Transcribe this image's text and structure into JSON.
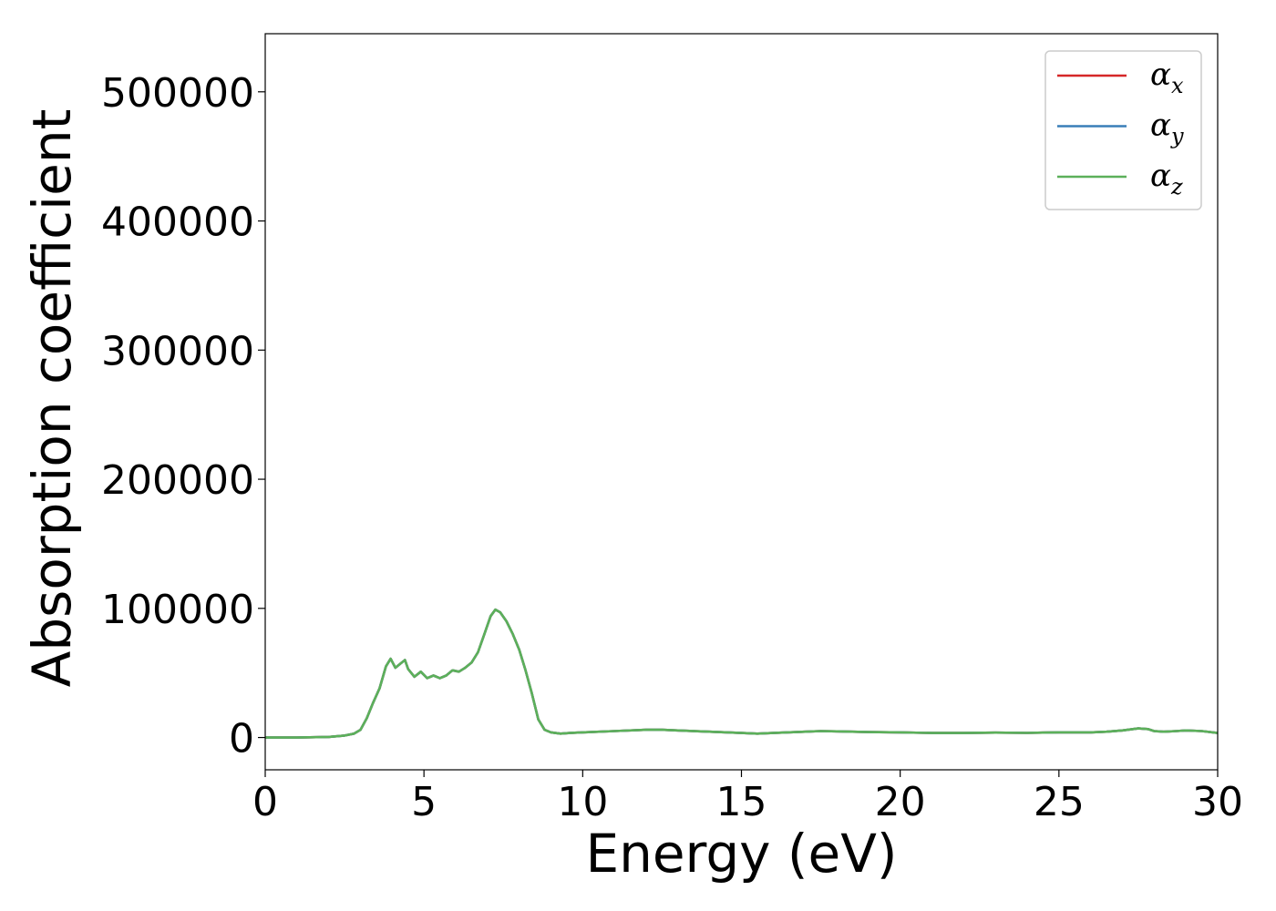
{
  "chart_data": {
    "type": "line",
    "xlabel": "Energy (eV)",
    "ylabel": "Absorption coefficient",
    "xlim": [
      0,
      30
    ],
    "ylim": [
      -25000,
      545000
    ],
    "xticks": [
      0,
      5,
      10,
      15,
      20,
      25,
      30
    ],
    "xtick_labels": [
      "0",
      "5",
      "10",
      "15",
      "20",
      "25",
      "30"
    ],
    "yticks": [
      0,
      100000,
      200000,
      300000,
      400000,
      500000
    ],
    "ytick_labels": [
      "0",
      "100000",
      "200000",
      "300000",
      "400000",
      "500000"
    ],
    "grid": false,
    "legend_position": "top-right",
    "x": [
      0,
      1,
      2,
      2.5,
      2.8,
      3.0,
      3.2,
      3.4,
      3.6,
      3.8,
      3.95,
      4.1,
      4.25,
      4.4,
      4.5,
      4.7,
      4.9,
      5.1,
      5.3,
      5.5,
      5.7,
      5.9,
      6.1,
      6.3,
      6.5,
      6.7,
      6.9,
      7.1,
      7.25,
      7.4,
      7.6,
      7.8,
      8.0,
      8.2,
      8.4,
      8.6,
      8.8,
      9.0,
      9.3,
      9.6,
      10,
      11,
      12,
      12.5,
      13,
      14,
      15,
      15.5,
      16,
      17,
      17.5,
      18,
      18.5,
      19,
      20,
      21,
      22,
      23,
      24,
      25,
      26,
      26.5,
      27,
      27.5,
      27.8,
      28,
      28.3,
      28.7,
      29,
      29.5,
      30
    ],
    "series": [
      {
        "name": "α",
        "subscript": "x",
        "color": "#d62728",
        "values": [
          0,
          0,
          500,
          1500,
          3000,
          6000,
          15000,
          27000,
          38000,
          55000,
          61000,
          54000,
          57000,
          60000,
          53000,
          47000,
          51000,
          46000,
          48000,
          46000,
          48000,
          52000,
          51000,
          54000,
          58000,
          66000,
          80000,
          94000,
          99000,
          97000,
          90000,
          80000,
          68000,
          52000,
          34000,
          14000,
          6000,
          4000,
          3000,
          3500,
          4000,
          5000,
          6000,
          6000,
          5500,
          4500,
          3500,
          3000,
          3500,
          4500,
          5000,
          4800,
          4500,
          4200,
          4000,
          3500,
          3500,
          3800,
          3600,
          4000,
          4000,
          4500,
          5500,
          7000,
          6500,
          5000,
          4500,
          5000,
          5500,
          5000,
          3500
        ]
      },
      {
        "name": "α",
        "subscript": "y",
        "color": "#3a7fb8",
        "values": [
          0,
          0,
          500,
          1500,
          3000,
          6000,
          15000,
          27000,
          38000,
          55000,
          61000,
          54000,
          57000,
          60000,
          53000,
          47000,
          51000,
          46000,
          48000,
          46000,
          48000,
          52000,
          51000,
          54000,
          58000,
          66000,
          80000,
          94000,
          99000,
          97000,
          90000,
          80000,
          68000,
          52000,
          34000,
          14000,
          6000,
          4000,
          3000,
          3500,
          4000,
          5000,
          6000,
          6000,
          5500,
          4500,
          3500,
          3000,
          3500,
          4500,
          5000,
          4800,
          4500,
          4200,
          4000,
          3500,
          3500,
          3800,
          3600,
          4000,
          4000,
          4500,
          5500,
          7000,
          6500,
          5000,
          4500,
          5000,
          5500,
          5000,
          3500
        ]
      },
      {
        "name": "α",
        "subscript": "z",
        "color": "#5cb05a",
        "values": [
          0,
          0,
          500,
          1500,
          3000,
          6000,
          15000,
          27000,
          38000,
          55000,
          61000,
          54000,
          57000,
          60000,
          53000,
          47000,
          51000,
          46000,
          48000,
          46000,
          48000,
          52000,
          51000,
          54000,
          58000,
          66000,
          80000,
          94000,
          99000,
          97000,
          90000,
          80000,
          68000,
          52000,
          34000,
          14000,
          6000,
          4000,
          3000,
          3500,
          4000,
          5000,
          6000,
          6000,
          5500,
          4500,
          3500,
          3000,
          3500,
          4500,
          5000,
          4800,
          4500,
          4200,
          4000,
          3500,
          3500,
          3800,
          3600,
          4000,
          4000,
          4500,
          5500,
          7000,
          6500,
          5000,
          4500,
          5000,
          5500,
          5000,
          3500
        ]
      }
    ]
  }
}
